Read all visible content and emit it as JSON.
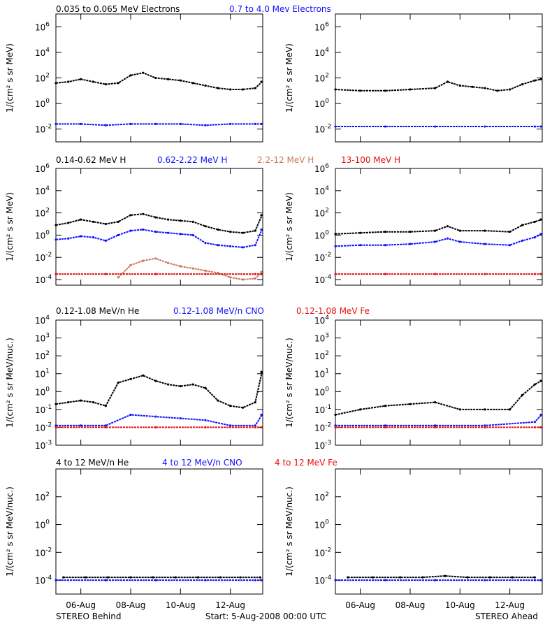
{
  "colors": {
    "black": "#000000",
    "blue": "#1010ff",
    "brown": "#c87858",
    "red": "#e81010"
  },
  "footer": {
    "left": "STEREO Behind",
    "center": "Start:  5-Aug-2008 00:00 UTC",
    "right": "STEREO Ahead"
  },
  "x_tick_labels": [
    "06-Aug",
    "08-Aug",
    "10-Aug",
    "12-Aug"
  ],
  "rows": [
    {
      "titles": [
        {
          "text": "0.035 to 0.065 MeV Electrons",
          "color": "black"
        },
        {
          "text": "0.7 to 4.0 Mev Electrons",
          "color": "blue"
        }
      ],
      "ylabel": "1/(cm² s sr MeV)",
      "y_ticks": [
        {
          "base": "10",
          "exp": "6",
          "value": 6
        },
        {
          "base": "10",
          "exp": "4",
          "value": 4
        },
        {
          "base": "10",
          "exp": "2",
          "value": 2
        },
        {
          "base": "10",
          "exp": "0",
          "value": 0
        },
        {
          "base": "10",
          "exp": "-2",
          "value": -2
        }
      ]
    },
    {
      "titles": [
        {
          "text": "0.14-0.62 MeV H",
          "color": "black"
        },
        {
          "text": "0.62-2.22 MeV H",
          "color": "blue"
        },
        {
          "text": "2.2-12 MeV H",
          "color": "brown"
        },
        {
          "text": "13-100 MeV H",
          "color": "red"
        }
      ],
      "ylabel": "1/(cm² s sr MeV)",
      "y_ticks": [
        {
          "base": "10",
          "exp": "6",
          "value": 6
        },
        {
          "base": "10",
          "exp": "4",
          "value": 4
        },
        {
          "base": "10",
          "exp": "2",
          "value": 2
        },
        {
          "base": "10",
          "exp": "0",
          "value": 0
        },
        {
          "base": "10",
          "exp": "-2",
          "value": -2
        },
        {
          "base": "10",
          "exp": "-4",
          "value": -4
        }
      ]
    },
    {
      "titles": [
        {
          "text": "0.12-1.08 MeV/n He",
          "color": "black"
        },
        {
          "text": "0.12-1.08 MeV/n CNO",
          "color": "blue"
        },
        {
          "text": "0.12-1.08 MeV Fe",
          "color": "red"
        }
      ],
      "ylabel": "1/(cm² s sr MeV/nuc.)",
      "y_ticks": [
        {
          "base": "10",
          "exp": "4",
          "value": 4
        },
        {
          "base": "10",
          "exp": "3",
          "value": 3
        },
        {
          "base": "10",
          "exp": "2",
          "value": 2
        },
        {
          "base": "10",
          "exp": "1",
          "value": 1
        },
        {
          "base": "10",
          "exp": "0",
          "value": 0
        },
        {
          "base": "10",
          "exp": "-1",
          "value": -1
        },
        {
          "base": "10",
          "exp": "-2",
          "value": -2
        },
        {
          "base": "10",
          "exp": "-3",
          "value": -3
        }
      ]
    },
    {
      "titles": [
        {
          "text": "4 to 12 MeV/n He",
          "color": "black"
        },
        {
          "text": "4 to 12 MeV/n CNO",
          "color": "blue"
        },
        {
          "text": "4 to 12 MeV Fe",
          "color": "red"
        }
      ],
      "ylabel": "1/(cm² s sr MeV/nuc.)",
      "y_ticks": [
        {
          "base": "10",
          "exp": "2",
          "value": 2
        },
        {
          "base": "10",
          "exp": "0",
          "value": 0
        },
        {
          "base": "10",
          "exp": "-2",
          "value": -2
        },
        {
          "base": "10",
          "exp": "-4",
          "value": -4
        }
      ]
    }
  ],
  "chart_data": [
    {
      "type": "scatter",
      "panel": "Behind electrons",
      "x_unit": "days since 5-Aug-2008 00:00",
      "ylim_log10": [
        -3,
        7
      ],
      "series": [
        {
          "name": "0.035 to 0.065 MeV Electrons",
          "color": "black",
          "x": [
            0,
            0.5,
            1,
            1.5,
            2,
            2.5,
            3,
            3.5,
            4,
            4.5,
            5,
            5.5,
            6,
            6.5,
            7,
            7.5,
            8,
            8.5
          ],
          "log10y": [
            1.6,
            1.7,
            1.9,
            1.7,
            1.5,
            1.6,
            2.2,
            2.4,
            2.0,
            1.9,
            1.8,
            1.6,
            1.4,
            1.2,
            1.1,
            1.1,
            1.2,
            1.7
          ]
        },
        {
          "name": "0.7 to 4.0 Mev Electrons",
          "color": "blue",
          "x": [
            0,
            1,
            2,
            3,
            4,
            5,
            6,
            7,
            8,
            8.5
          ],
          "log10y": [
            -1.6,
            -1.6,
            -1.7,
            -1.6,
            -1.6,
            -1.6,
            -1.7,
            -1.6,
            -1.6,
            -1.6
          ]
        }
      ]
    },
    {
      "type": "scatter",
      "panel": "Ahead electrons",
      "x_unit": "days since 5-Aug-2008 00:00",
      "ylim_log10": [
        -3,
        7
      ],
      "series": [
        {
          "name": "0.035 to 0.065 MeV Electrons",
          "color": "black",
          "x": [
            0,
            1,
            2,
            3,
            4,
            4.5,
            5,
            5.5,
            6,
            6.5,
            7,
            7.5,
            8,
            8.5
          ],
          "log10y": [
            1.1,
            1.0,
            1.0,
            1.1,
            1.2,
            1.7,
            1.4,
            1.3,
            1.2,
            1.0,
            1.1,
            1.5,
            1.8,
            1.9
          ]
        },
        {
          "name": "0.7 to 4.0 Mev Electrons",
          "color": "blue",
          "x": [
            0,
            2,
            4,
            6,
            8,
            8.5
          ],
          "log10y": [
            -1.8,
            -1.8,
            -1.8,
            -1.8,
            -1.8,
            -1.8
          ]
        }
      ]
    },
    {
      "type": "scatter",
      "panel": "Behind protons",
      "x_unit": "days since 5-Aug-2008 00:00",
      "ylim_log10": [
        -4.5,
        6
      ],
      "series": [
        {
          "name": "0.14-0.62 MeV H",
          "color": "black",
          "x": [
            0,
            0.5,
            1,
            1.5,
            2,
            2.5,
            3,
            3.5,
            4,
            4.5,
            5,
            5.5,
            6,
            6.5,
            7,
            7.5,
            8,
            8.5
          ],
          "log10y": [
            0.9,
            1.1,
            1.4,
            1.2,
            1.0,
            1.2,
            1.8,
            1.9,
            1.6,
            1.4,
            1.3,
            1.2,
            0.8,
            0.5,
            0.3,
            0.2,
            0.4,
            1.8
          ]
        },
        {
          "name": "0.62-2.22 MeV H",
          "color": "blue",
          "x": [
            0,
            0.5,
            1,
            1.5,
            2,
            2.5,
            3,
            3.5,
            4,
            4.5,
            5,
            5.5,
            6,
            6.5,
            7,
            7.5,
            8,
            8.5
          ],
          "log10y": [
            -0.4,
            -0.3,
            -0.1,
            -0.2,
            -0.5,
            0,
            0.4,
            0.5,
            0.3,
            0.2,
            0.1,
            0,
            -0.7,
            -0.9,
            -1,
            -1.1,
            -0.9,
            0.5
          ]
        },
        {
          "name": "2.2-12 MeV H",
          "color": "brown",
          "x": [
            2.5,
            3,
            3.5,
            4,
            4.5,
            5,
            5.5,
            6,
            6.5,
            7,
            7.5,
            8,
            8.5
          ],
          "log10y": [
            -3.8,
            -2.7,
            -2.3,
            -2.1,
            -2.5,
            -2.8,
            -3.0,
            -3.2,
            -3.4,
            -3.8,
            -4.0,
            -3.9,
            -3.3
          ]
        },
        {
          "name": "13-100 MeV H",
          "color": "red",
          "x": [
            0,
            2,
            4,
            6,
            8,
            8.5
          ],
          "log10y": [
            -3.5,
            -3.5,
            -3.5,
            -3.5,
            -3.5,
            -3.5
          ]
        }
      ]
    },
    {
      "type": "scatter",
      "panel": "Ahead protons",
      "x_unit": "days since 5-Aug-2008 00:00",
      "ylim_log10": [
        -4.5,
        6
      ],
      "series": [
        {
          "name": "0.14-0.62 MeV H",
          "color": "black",
          "x": [
            0,
            1,
            2,
            3,
            4,
            4.5,
            5,
            6,
            7,
            7.5,
            8,
            8.5
          ],
          "log10y": [
            0.1,
            0.2,
            0.3,
            0.3,
            0.4,
            0.8,
            0.4,
            0.4,
            0.3,
            0.9,
            1.2,
            1.4
          ]
        },
        {
          "name": "0.62-2.22 MeV H",
          "color": "blue",
          "x": [
            0,
            1,
            2,
            3,
            4,
            4.5,
            5,
            6,
            7,
            7.5,
            8,
            8.5
          ],
          "log10y": [
            -1.0,
            -0.9,
            -0.9,
            -0.8,
            -0.6,
            -0.3,
            -0.6,
            -0.8,
            -0.9,
            -0.5,
            -0.2,
            0.1
          ]
        },
        {
          "name": "13-100 MeV H",
          "color": "red",
          "x": [
            0,
            2,
            4,
            6,
            8,
            8.5
          ],
          "log10y": [
            -3.5,
            -3.5,
            -3.5,
            -3.5,
            -3.5,
            -3.5
          ]
        }
      ]
    },
    {
      "type": "scatter",
      "panel": "Behind 0.12-1.08 MeV/n",
      "x_unit": "days since 5-Aug-2008 00:00",
      "ylim_log10": [
        -3,
        4
      ],
      "series": [
        {
          "name": "0.12-1.08 MeV/n He",
          "color": "black",
          "x": [
            0,
            0.5,
            1,
            1.5,
            2,
            2.5,
            3,
            3.5,
            4,
            4.5,
            5,
            5.5,
            6,
            6.5,
            7,
            7.5,
            8,
            8.5
          ],
          "log10y": [
            -0.7,
            -0.6,
            -0.5,
            -0.6,
            -0.8,
            0.5,
            0.7,
            0.9,
            0.6,
            0.4,
            0.3,
            0.4,
            0.2,
            -0.5,
            -0.8,
            -0.9,
            -0.6,
            1.1
          ]
        },
        {
          "name": "0.12-1.08 MeV/n CNO",
          "color": "blue",
          "x": [
            0,
            1,
            2,
            3,
            4,
            5,
            6,
            7,
            8,
            8.5
          ],
          "log10y": [
            -1.9,
            -1.9,
            -1.9,
            -1.3,
            -1.4,
            -1.5,
            -1.6,
            -1.9,
            -1.9,
            -1.3
          ]
        },
        {
          "name": "0.12-1.08 MeV Fe",
          "color": "red",
          "x": [
            0,
            2,
            4,
            6,
            8,
            8.5
          ],
          "log10y": [
            -2.0,
            -2.0,
            -2.0,
            -2.0,
            -2.0,
            -2.0
          ]
        }
      ]
    },
    {
      "type": "scatter",
      "panel": "Ahead 0.12-1.08 MeV/n",
      "x_unit": "days since 5-Aug-2008 00:00",
      "ylim_log10": [
        -3,
        4
      ],
      "series": [
        {
          "name": "0.12-1.08 MeV/n He",
          "color": "black",
          "x": [
            0,
            1,
            2,
            3,
            4,
            5,
            6,
            7,
            7.5,
            8,
            8.5
          ],
          "log10y": [
            -1.3,
            -1.0,
            -0.8,
            -0.7,
            -0.6,
            -1.0,
            -1.0,
            -1.0,
            -0.2,
            0.4,
            0.6
          ]
        },
        {
          "name": "0.12-1.08 MeV/n CNO",
          "color": "blue",
          "x": [
            0,
            2,
            4,
            6,
            8,
            8.5
          ],
          "log10y": [
            -1.9,
            -1.9,
            -1.9,
            -1.9,
            -1.7,
            -1.3
          ]
        },
        {
          "name": "0.12-1.08 MeV Fe",
          "color": "red",
          "x": [
            0,
            2,
            4,
            6,
            8,
            8.5
          ],
          "log10y": [
            -2.0,
            -2.0,
            -2.0,
            -2.0,
            -2.0,
            -2.0
          ]
        }
      ]
    },
    {
      "type": "scatter",
      "panel": "Behind 4 to 12 MeV/n",
      "x_unit": "days since 5-Aug-2008 00:00",
      "ylim_log10": [
        -5,
        4
      ],
      "series": [
        {
          "name": "4 to 12 MeV/n He",
          "color": "black",
          "x": [
            0.3,
            1.2,
            2.1,
            3.0,
            3.9,
            4.8,
            5.7,
            6.6,
            7.4,
            8.2
          ],
          "log10y": [
            -3.8,
            -3.8,
            -3.8,
            -3.8,
            -3.8,
            -3.8,
            -3.8,
            -3.8,
            -3.8,
            -3.8
          ]
        },
        {
          "name": "4 to 12 MeV/n CNO",
          "color": "blue",
          "x": [
            0,
            2,
            4,
            6,
            8,
            8.5
          ],
          "log10y": [
            -4.0,
            -4.0,
            -4.0,
            -4.0,
            -4.0,
            -4.0
          ]
        }
      ]
    },
    {
      "type": "scatter",
      "panel": "Ahead 4 to 12 MeV/n",
      "x_unit": "days since 5-Aug-2008 00:00",
      "ylim_log10": [
        -5,
        4
      ],
      "series": [
        {
          "name": "4 to 12 MeV/n He",
          "color": "black",
          "x": [
            0.5,
            1.5,
            2.6,
            3.5,
            4.4,
            5.3,
            6.2,
            7.1,
            8.0
          ],
          "log10y": [
            -3.8,
            -3.8,
            -3.8,
            -3.8,
            -3.7,
            -3.8,
            -3.8,
            -3.8,
            -3.8
          ]
        },
        {
          "name": "4 to 12 MeV/n CNO",
          "color": "blue",
          "x": [
            0,
            2,
            4,
            6,
            8,
            8.5
          ],
          "log10y": [
            -4.0,
            -4.0,
            -4.0,
            -4.0,
            -4.0,
            -4.0
          ]
        }
      ]
    }
  ]
}
